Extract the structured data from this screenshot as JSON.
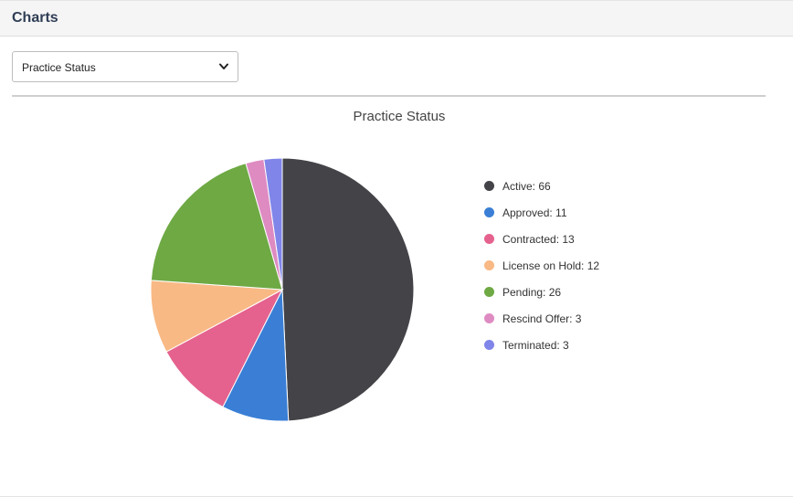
{
  "header": {
    "title": "Charts"
  },
  "chart_selector": {
    "selected": "Practice Status",
    "chevron_icon": "chevron-down-icon"
  },
  "chart_data": {
    "type": "pie",
    "title": "Practice Status",
    "legend_position": "right",
    "categories": [
      "Active",
      "Approved",
      "Contracted",
      "License on Hold",
      "Pending",
      "Rescind Offer",
      "Terminated"
    ],
    "values": [
      66,
      11,
      13,
      12,
      26,
      3,
      3
    ],
    "legend_labels": [
      "Active: 66",
      "Approved: 11",
      "Contracted: 13",
      "License on Hold: 12",
      "Pending: 26",
      "Rescind Offer: 3",
      "Terminated: 3"
    ],
    "colors": [
      "#434348",
      "#3a7fd5",
      "#e5628e",
      "#f8b985",
      "#6ea944",
      "#de8bc2",
      "#8085e9"
    ]
  }
}
